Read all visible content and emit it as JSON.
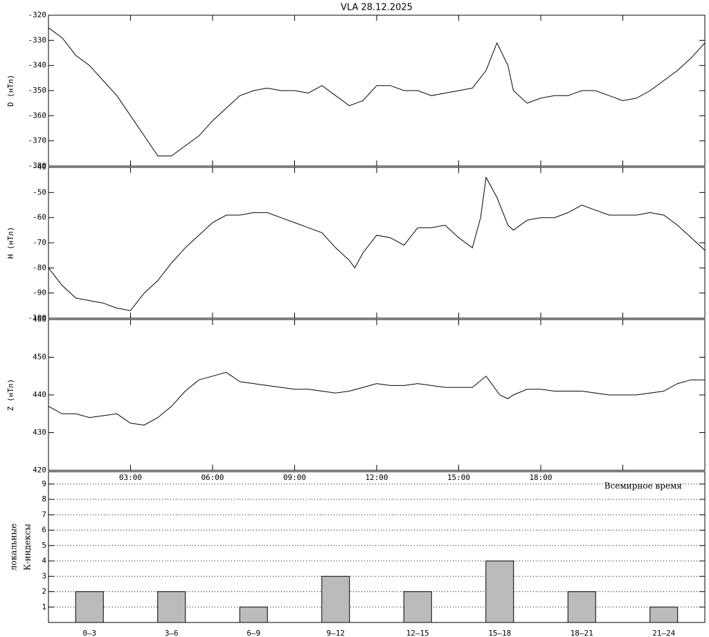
{
  "chart_data": [
    {
      "type": "line",
      "title": "VLA   28.12.2025",
      "y_label": "D (нТл)",
      "color": "#000000",
      "x": [
        0,
        0.5,
        1,
        1.5,
        2,
        2.5,
        3,
        3.5,
        4,
        4.5,
        5,
        5.5,
        6,
        6.5,
        7,
        7.5,
        8,
        8.5,
        9,
        9.5,
        10,
        10.5,
        11,
        11.5,
        12,
        12.5,
        13,
        13.5,
        14,
        14.5,
        15,
        15.5,
        16,
        16.4,
        16.8,
        17,
        17.5,
        18,
        18.5,
        19,
        19.5,
        20,
        20.5,
        21,
        21.5,
        22,
        22.5,
        23,
        23.5,
        24
      ],
      "values": [
        -325,
        -329,
        -336,
        -340,
        -346,
        -352,
        -360,
        -368,
        -376,
        -376,
        -372,
        -368,
        -362,
        -357,
        -352,
        -350,
        -349,
        -350,
        -350,
        -351,
        -348,
        -352,
        -356,
        -354,
        -348,
        -348,
        -350,
        -350,
        -352,
        -351,
        -350,
        -349,
        -342,
        -331,
        -340,
        -350,
        -355,
        -353,
        -352,
        -352,
        -350,
        -350,
        -352,
        -354,
        -353,
        -350,
        -346,
        -342,
        -337,
        -331
      ],
      "xlim": [
        0,
        24
      ],
      "ylim": [
        -380,
        -320
      ],
      "yticks": [
        -380,
        -370,
        -360,
        -350,
        -340,
        -330,
        -320
      ]
    },
    {
      "type": "line",
      "y_label": "H (нТл)",
      "color": "#000000",
      "x": [
        0,
        0.5,
        1,
        1.5,
        2,
        2.5,
        3,
        3.5,
        4,
        4.5,
        5,
        5.5,
        6,
        6.5,
        7,
        7.5,
        8,
        8.5,
        9,
        9.5,
        10,
        10.5,
        11,
        11.2,
        11.5,
        12,
        12.5,
        13,
        13.5,
        14,
        14.5,
        15,
        15.5,
        15.8,
        16,
        16.4,
        16.8,
        17,
        17.5,
        18,
        18.5,
        19,
        19.5,
        20,
        20.5,
        21,
        21.5,
        22,
        22.5,
        23,
        23.5,
        24
      ],
      "values": [
        -80,
        -87,
        -92,
        -93,
        -94,
        -96,
        -97,
        -90,
        -85,
        -78,
        -72,
        -67,
        -62,
        -59,
        -59,
        -58,
        -58,
        -60,
        -62,
        -64,
        -66,
        -72,
        -77,
        -80,
        -74,
        -67,
        -68,
        -71,
        -64,
        -64,
        -63,
        -68,
        -72,
        -60,
        -44,
        -52,
        -63,
        -65,
        -61,
        -60,
        -60,
        -58,
        -55,
        -57,
        -59,
        -59,
        -59,
        -58,
        -59,
        -63,
        -68,
        -73
      ],
      "xlim": [
        0,
        24
      ],
      "ylim": [
        -100,
        -40
      ],
      "yticks": [
        -100,
        -90,
        -80,
        -70,
        -60,
        -50,
        -40
      ]
    },
    {
      "type": "line",
      "y_label": "Z (нТл)",
      "x_label": "Всемирное время",
      "color": "#000000",
      "x": [
        0,
        0.5,
        1,
        1.5,
        2,
        2.5,
        3,
        3.5,
        4,
        4.5,
        5,
        5.5,
        6,
        6.5,
        7,
        7.5,
        8,
        8.5,
        9,
        9.5,
        10,
        10.5,
        11,
        11.5,
        12,
        12.5,
        13,
        13.5,
        14,
        14.5,
        15,
        15.5,
        16,
        16.5,
        16.8,
        17,
        17.5,
        18,
        18.5,
        19,
        19.5,
        20,
        20.5,
        21,
        21.5,
        22,
        22.5,
        23,
        23.5,
        24
      ],
      "values": [
        437,
        435,
        435,
        434,
        434.5,
        435,
        432.5,
        432,
        434,
        437,
        441,
        444,
        445,
        446,
        443.5,
        443,
        442.5,
        442,
        441.5,
        441.5,
        441,
        440.5,
        441,
        442,
        443,
        442.5,
        442.5,
        443,
        442.5,
        442,
        442,
        442,
        445,
        440,
        439,
        440,
        441.5,
        441.5,
        441,
        441,
        441,
        440.5,
        440,
        440,
        440,
        440.5,
        441,
        443,
        444,
        444
      ],
      "xlim": [
        0,
        24
      ],
      "ylim": [
        420,
        460
      ],
      "yticks": [
        420,
        430,
        440,
        450,
        460
      ],
      "xticks": [
        {
          "value": 3,
          "label": "03:00"
        },
        {
          "value": 6,
          "label": "06:00"
        },
        {
          "value": 9,
          "label": "09:00"
        },
        {
          "value": 12,
          "label": "12:00"
        },
        {
          "value": 15,
          "label": "15:00"
        },
        {
          "value": 18,
          "label": "18:00"
        },
        {
          "value": 21,
          "label": ""
        }
      ]
    },
    {
      "type": "bar",
      "y_label": [
        "локальные",
        "К-индексы"
      ],
      "color": "#bbbbbb",
      "categories": [
        "0–3",
        "3–6",
        "6–9",
        "9–12",
        "12–15",
        "15–18",
        "18–21",
        "21–24"
      ],
      "values": [
        2,
        2,
        1,
        3,
        2,
        4,
        2,
        1
      ],
      "ylim": [
        0,
        9.8
      ],
      "yticks": [
        1,
        2,
        3,
        4,
        5,
        6,
        7,
        8,
        9
      ],
      "grid": true
    }
  ]
}
